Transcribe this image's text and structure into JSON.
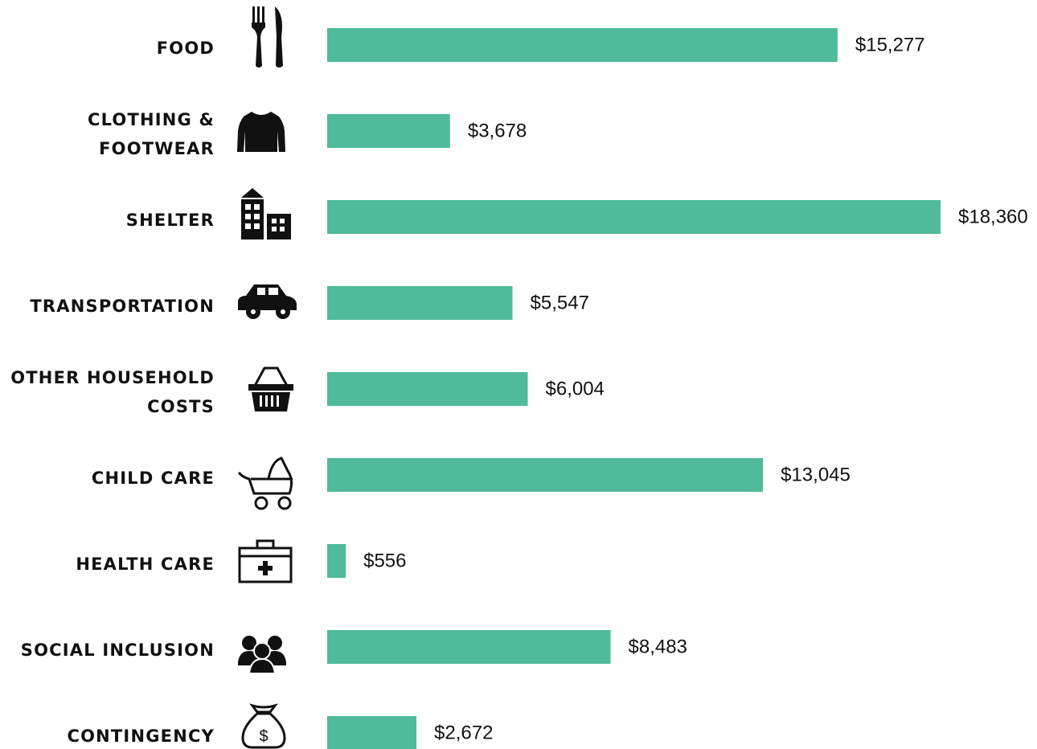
{
  "chart_data": {
    "type": "bar",
    "orientation": "horizontal",
    "categories": [
      "FOOD",
      "CLOTHING & FOOTWEAR",
      "SHELTER",
      "TRANSPORTATION",
      "OTHER HOUSEHOLD COSTS",
      "CHILD CARE",
      "HEALTH CARE",
      "SOCIAL INCLUSION",
      "CONTINGENCY"
    ],
    "values": [
      15277,
      3678,
      18360,
      5547,
      6004,
      13045,
      556,
      8483,
      2672
    ],
    "value_labels": [
      "$15,277",
      "$3,678",
      "$18,360",
      "$5,547",
      "$6,004",
      "$13,045",
      "$556",
      "$8,483",
      "$2,672"
    ],
    "color": "#4fbb9a"
  }
}
